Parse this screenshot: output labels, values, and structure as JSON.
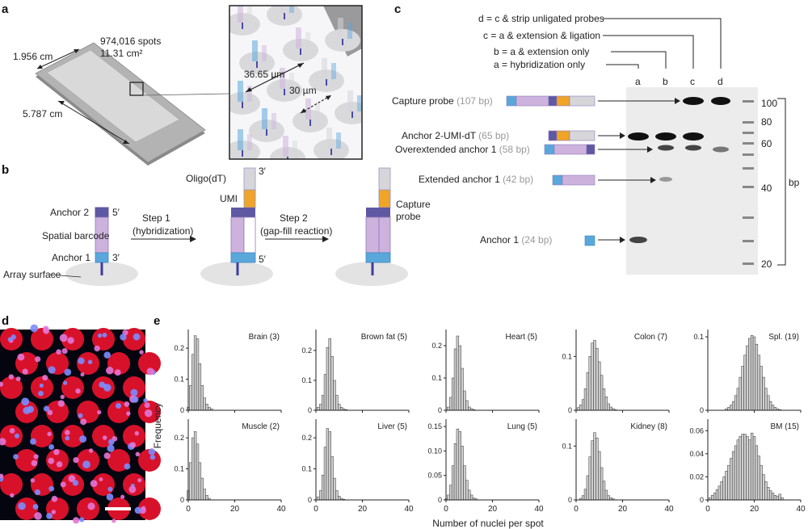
{
  "figure": {
    "panels": {
      "a": "a",
      "b": "b",
      "c": "c",
      "d": "d",
      "e": "e"
    }
  },
  "panel_a": {
    "spots": "974,016 spots",
    "area": "11.31 cm²",
    "width": "1.956 cm",
    "length": "5.787 cm",
    "center_distance": "36.65 µm",
    "spot_diameter": "30 µm"
  },
  "panel_b": {
    "anchor2": "Anchor 2",
    "spatial_barcode": "Spatial barcode",
    "anchor1": "Anchor 1",
    "array_surface": "Array surface",
    "five_prime": "5′",
    "three_prime": "3′",
    "step1_line1": "Step 1",
    "step1_line2": "(hybridization)",
    "step2_line1": "Step 2",
    "step2_line2": "(gap-fill reaction)",
    "oligo_dt": "Oligo(dT)",
    "umi": "UMI",
    "capture_line1": "Capture",
    "capture_line2": "probe"
  },
  "panel_c": {
    "legend": [
      "d = c & strip unligated probes",
      "c = a & extension & ligation",
      "b = a & extension only",
      "a = hybridization only"
    ],
    "lanes": [
      "a",
      "b",
      "c",
      "d"
    ],
    "products": [
      {
        "name": "Capture probe",
        "size": "(107 bp)"
      },
      {
        "name": "Anchor 2-UMI-dT",
        "size": "(65 bp)"
      },
      {
        "name": "Overextended anchor 1",
        "size": "(58 bp)"
      },
      {
        "name": "Extended anchor 1",
        "size": "(42 bp)"
      },
      {
        "name": "Anchor 1",
        "size": "(24 bp)"
      }
    ],
    "ladder": [
      "100",
      "80",
      "60",
      "40",
      "20"
    ],
    "unit": "bp"
  },
  "colors": {
    "anchor1": "#5aa7dc",
    "barcode": "#cdb2dd",
    "anchor2": "#5f58a3",
    "umi": "#f0a428",
    "oligo_dt": "#d6d6da",
    "gel_bg": "#ececec",
    "nuclei_red": "#d8112b",
    "nuclei_blue": "#7c8cff",
    "hist_fill": "#cfcfcf"
  },
  "panel_e": {
    "ylabel": "Frequency",
    "xlabel": "Number of nuclei per spot",
    "xticks": [
      "0",
      "20",
      "40"
    ]
  },
  "chart_data": [
    {
      "type": "bar",
      "title": "Brain (3)",
      "x": [
        0,
        1,
        2,
        3,
        4,
        5,
        6,
        7,
        8,
        9,
        10
      ],
      "values": [
        0.01,
        0.08,
        0.18,
        0.24,
        0.23,
        0.15,
        0.08,
        0.04,
        0.02,
        0.01,
        0.005
      ],
      "yticks": [
        "0.2",
        "0.1",
        "0"
      ],
      "ylim": [
        0,
        0.26
      ],
      "xlim": [
        0,
        40
      ]
    },
    {
      "type": "bar",
      "title": "Brown fat (5)",
      "x": [
        0,
        1,
        2,
        3,
        4,
        5,
        6,
        7,
        8,
        9,
        10,
        11,
        12,
        13
      ],
      "values": [
        0.0,
        0.01,
        0.02,
        0.05,
        0.12,
        0.21,
        0.24,
        0.18,
        0.1,
        0.05,
        0.02,
        0.01,
        0.005,
        0.002
      ],
      "yticks": [
        "0.2",
        "0.1",
        "0"
      ],
      "ylim": [
        0,
        0.27
      ],
      "xlim": [
        0,
        40
      ]
    },
    {
      "type": "bar",
      "title": "Heart (5)",
      "x": [
        0,
        1,
        2,
        3,
        4,
        5,
        6,
        7,
        8,
        9,
        10,
        11,
        12
      ],
      "values": [
        0.0,
        0.01,
        0.04,
        0.1,
        0.19,
        0.23,
        0.2,
        0.13,
        0.06,
        0.03,
        0.01,
        0.005,
        0.002
      ],
      "yticks": [
        "0.2",
        "0.1",
        "0"
      ],
      "ylim": [
        0,
        0.25
      ],
      "xlim": [
        0,
        40
      ]
    },
    {
      "type": "bar",
      "title": "Colon (7)",
      "x": [
        0,
        1,
        2,
        3,
        4,
        5,
        6,
        7,
        8,
        9,
        10,
        11,
        12,
        13,
        14,
        15,
        16,
        17
      ],
      "values": [
        0.0,
        0.005,
        0.01,
        0.02,
        0.04,
        0.07,
        0.1,
        0.125,
        0.13,
        0.115,
        0.09,
        0.065,
        0.04,
        0.025,
        0.012,
        0.006,
        0.003,
        0.001
      ],
      "yticks": [
        "0.1",
        "0"
      ],
      "ylim": [
        0,
        0.15
      ],
      "xlim": [
        0,
        40
      ]
    },
    {
      "type": "bar",
      "title": "Spl. (19)",
      "x": [
        8,
        9,
        10,
        11,
        12,
        13,
        14,
        15,
        16,
        17,
        18,
        19,
        20,
        21,
        22,
        23,
        24,
        25,
        26,
        27,
        28,
        29,
        30,
        31
      ],
      "values": [
        0.002,
        0.004,
        0.007,
        0.012,
        0.02,
        0.03,
        0.045,
        0.06,
        0.075,
        0.088,
        0.098,
        0.102,
        0.1,
        0.09,
        0.075,
        0.06,
        0.045,
        0.03,
        0.02,
        0.012,
        0.007,
        0.004,
        0.002,
        0.001
      ],
      "yticks": [
        "0.1",
        "0"
      ],
      "ylim": [
        0,
        0.11
      ],
      "xlim": [
        0,
        40
      ]
    },
    {
      "type": "bar",
      "title": "Muscle (2)",
      "x": [
        0,
        1,
        2,
        3,
        4,
        5,
        6,
        7,
        8,
        9
      ],
      "values": [
        0.03,
        0.12,
        0.2,
        0.22,
        0.18,
        0.12,
        0.07,
        0.035,
        0.015,
        0.005
      ],
      "yticks": [
        "0.2",
        "0.1",
        "0"
      ],
      "ylim": [
        0,
        0.26
      ],
      "xlim": [
        0,
        40
      ]
    },
    {
      "type": "bar",
      "title": "Liver (5)",
      "x": [
        0,
        1,
        2,
        3,
        4,
        5,
        6,
        7,
        8,
        9,
        10,
        11,
        12
      ],
      "values": [
        0.0,
        0.01,
        0.03,
        0.08,
        0.17,
        0.23,
        0.22,
        0.14,
        0.07,
        0.03,
        0.012,
        0.005,
        0.002
      ],
      "yticks": [
        "0.2",
        "0.1",
        "0"
      ],
      "ylim": [
        0,
        0.26
      ],
      "xlim": [
        0,
        40
      ]
    },
    {
      "type": "bar",
      "title": "Lung (5)",
      "x": [
        0,
        1,
        2,
        3,
        4,
        5,
        6,
        7,
        8,
        9,
        10,
        11,
        12,
        13
      ],
      "values": [
        0.002,
        0.01,
        0.03,
        0.07,
        0.115,
        0.145,
        0.14,
        0.11,
        0.07,
        0.04,
        0.02,
        0.01,
        0.004,
        0.002
      ],
      "yticks": [
        "0.15",
        "0.10",
        "0.05",
        "0"
      ],
      "ylim": [
        0,
        0.165
      ],
      "xlim": [
        0,
        40
      ]
    },
    {
      "type": "bar",
      "title": "Kidney (8)",
      "x": [
        2,
        3,
        4,
        5,
        6,
        7,
        8,
        9,
        10,
        11,
        12,
        13,
        14,
        15,
        16
      ],
      "values": [
        0.003,
        0.008,
        0.02,
        0.045,
        0.08,
        0.11,
        0.125,
        0.115,
        0.09,
        0.06,
        0.035,
        0.018,
        0.008,
        0.004,
        0.002
      ],
      "yticks": [
        "0.1",
        "0"
      ],
      "ylim": [
        0,
        0.15
      ],
      "xlim": [
        0,
        40
      ]
    },
    {
      "type": "bar",
      "title": "BM (15)",
      "x": [
        1,
        2,
        3,
        4,
        5,
        6,
        7,
        8,
        9,
        10,
        11,
        12,
        13,
        14,
        15,
        16,
        17,
        18,
        19,
        20,
        21,
        22,
        23,
        24,
        25,
        26,
        27,
        28,
        29,
        30,
        31,
        32
      ],
      "values": [
        0.002,
        0.004,
        0.006,
        0.009,
        0.012,
        0.016,
        0.02,
        0.025,
        0.03,
        0.036,
        0.042,
        0.047,
        0.052,
        0.055,
        0.057,
        0.057,
        0.055,
        0.052,
        0.058,
        0.055,
        0.047,
        0.038,
        0.03,
        0.022,
        0.016,
        0.011,
        0.008,
        0.006,
        0.004,
        0.003,
        0.005,
        0.002
      ],
      "yticks": [
        "0.06",
        "0.04",
        "0.02",
        "0"
      ],
      "ylim": [
        0,
        0.07
      ],
      "xlim": [
        0,
        40
      ]
    }
  ]
}
